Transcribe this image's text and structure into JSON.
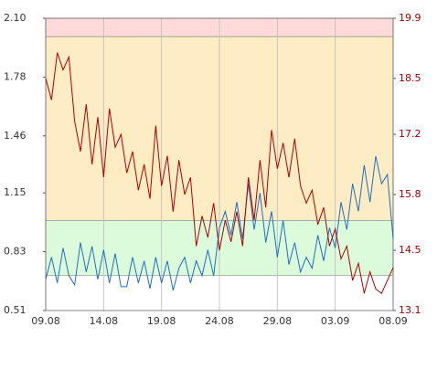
{
  "chart_data": {
    "type": "line",
    "x": [
      0,
      0.5,
      1,
      1.5,
      2,
      2.5,
      3,
      3.5,
      4,
      4.5,
      5,
      5.5,
      6,
      6.5,
      7,
      7.5,
      8,
      8.5,
      9,
      9.5,
      10,
      10.5,
      11,
      11.5,
      12,
      12.5,
      13,
      13.5,
      14,
      14.5,
      15,
      15.5,
      16,
      16.5,
      17,
      17.5,
      18,
      18.5,
      19,
      19.5,
      20,
      20.5,
      21,
      21.5,
      22,
      22.5,
      23,
      23.5,
      24,
      24.5,
      25,
      25.5,
      26,
      26.5,
      27,
      27.5,
      28,
      28.5,
      29,
      29.5,
      30
    ],
    "xlim": [
      0,
      30
    ],
    "xticks": [
      {
        "value": 0,
        "label": "09.08"
      },
      {
        "value": 5,
        "label": "14.08"
      },
      {
        "value": 10,
        "label": "19.08"
      },
      {
        "value": 15,
        "label": "24.08"
      },
      {
        "value": 20,
        "label": "29.08"
      },
      {
        "value": 25,
        "label": "03.09"
      },
      {
        "value": 30,
        "label": "08.09"
      }
    ],
    "ylim": [
      0.51,
      2.1
    ],
    "yticks": [
      0.51,
      0.83,
      1.15,
      1.46,
      1.78,
      {
        "value": 2.1,
        "label": "2.10"
      }
    ],
    "y2lim": [
      13.1,
      19.9
    ],
    "y2ticks": [
      13.1,
      14.5,
      15.8,
      17.2,
      18.5,
      19.9
    ],
    "grid": true,
    "bands": [
      {
        "from": 2.0,
        "to": 2.1,
        "color": "#ffdada"
      },
      {
        "from": 1.0,
        "to": 2.0,
        "color": "#fdecc4"
      },
      {
        "from": 0.7,
        "to": 1.0,
        "color": "#dbfbdb"
      }
    ],
    "series": [
      {
        "color": "#1f6fc0",
        "values": [
          0.68,
          0.8,
          0.66,
          0.85,
          0.7,
          0.65,
          0.88,
          0.72,
          0.86,
          0.68,
          0.84,
          0.66,
          0.82,
          0.64,
          0.64,
          0.8,
          0.66,
          0.78,
          0.63,
          0.8,
          0.66,
          0.78,
          0.62,
          0.74,
          0.8,
          0.66,
          0.78,
          0.7,
          0.84,
          0.7,
          0.96,
          1.05,
          0.92,
          1.1,
          0.9,
          1.2,
          0.95,
          1.15,
          0.88,
          1.05,
          0.8,
          1.0,
          0.76,
          0.88,
          0.72,
          0.8,
          0.74,
          0.92,
          0.78,
          0.96,
          0.85,
          1.1,
          0.95,
          1.2,
          1.05,
          1.3,
          1.1,
          1.35,
          1.2,
          1.25,
          0.9
        ]
      },
      {
        "color": "#b00000",
        "axis": "y2",
        "values": [
          18.5,
          18.0,
          19.1,
          18.7,
          19.0,
          17.5,
          16.8,
          17.9,
          16.5,
          17.6,
          16.2,
          17.8,
          16.9,
          17.2,
          16.3,
          16.8,
          15.9,
          16.5,
          15.7,
          17.4,
          16.0,
          16.7,
          15.4,
          16.6,
          15.8,
          16.2,
          14.6,
          15.3,
          14.8,
          15.6,
          14.5,
          15.2,
          14.7,
          15.4,
          14.6,
          16.2,
          15.2,
          16.6,
          15.5,
          17.3,
          16.4,
          17.0,
          16.2,
          17.1,
          16.0,
          15.6,
          15.9,
          15.1,
          15.5,
          14.6,
          15.0,
          14.3,
          14.6,
          13.8,
          14.2,
          13.5,
          14.0,
          13.6,
          13.5,
          13.8,
          14.1
        ]
      }
    ]
  }
}
